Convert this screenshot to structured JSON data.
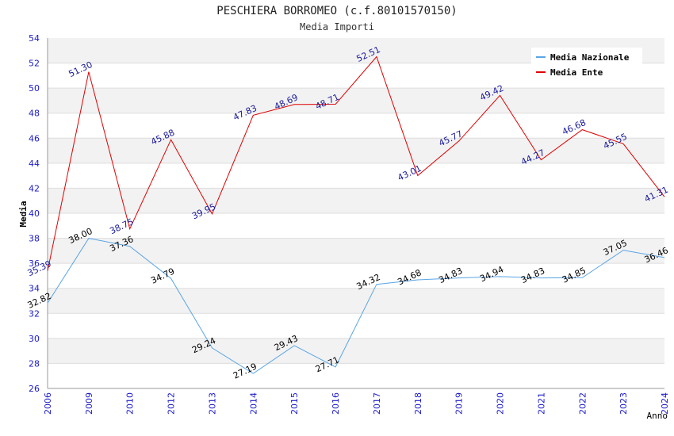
{
  "chart_data": {
    "type": "line",
    "title": "PESCHIERA BORROMEO (c.f.80101570150)",
    "subtitle": "Media Importi",
    "xlabel": "Anno",
    "ylabel": "Media",
    "ylim": [
      26,
      54
    ],
    "yticks": [
      "26",
      "28",
      "30",
      "32",
      "34",
      "36",
      "38",
      "40",
      "42",
      "44",
      "46",
      "48",
      "50",
      "52",
      "54"
    ],
    "categories": [
      "2006",
      "2009",
      "2010",
      "2012",
      "2013",
      "2014",
      "2015",
      "2016",
      "2017",
      "2018",
      "2019",
      "2020",
      "2021",
      "2022",
      "2023",
      "2024"
    ],
    "grid": true,
    "legend_position": "top-right",
    "series": [
      {
        "name": "Media Nazionale",
        "color": "#5aa5e6",
        "label_color": "#000000",
        "values": [
          32.82,
          38.0,
          37.36,
          34.79,
          29.24,
          27.19,
          29.43,
          27.71,
          34.32,
          34.68,
          34.83,
          34.94,
          34.83,
          34.85,
          37.05,
          36.46
        ],
        "labels": [
          "32.82",
          "38.00",
          "37.36",
          "34.79",
          "29.24",
          "27.19",
          "29.43",
          "27.71",
          "34.32",
          "34.68",
          "34.83",
          "34.94",
          "34.83",
          "34.85",
          "37.05",
          "36.46"
        ]
      },
      {
        "name": "Media Ente",
        "color": "#e00000",
        "label_color": "#1a1a99",
        "values": [
          35.39,
          51.3,
          38.75,
          45.88,
          39.95,
          47.83,
          48.69,
          48.71,
          52.51,
          43.01,
          45.77,
          49.42,
          44.27,
          46.68,
          45.55,
          41.31
        ],
        "labels": [
          "35.39",
          "51.30",
          "38.75",
          "45.88",
          "39.95",
          "47.83",
          "48.69",
          "48.71",
          "52.51",
          "43.01",
          "45.77",
          "49.42",
          "44.27",
          "46.68",
          "45.55",
          "41.31"
        ]
      }
    ]
  }
}
